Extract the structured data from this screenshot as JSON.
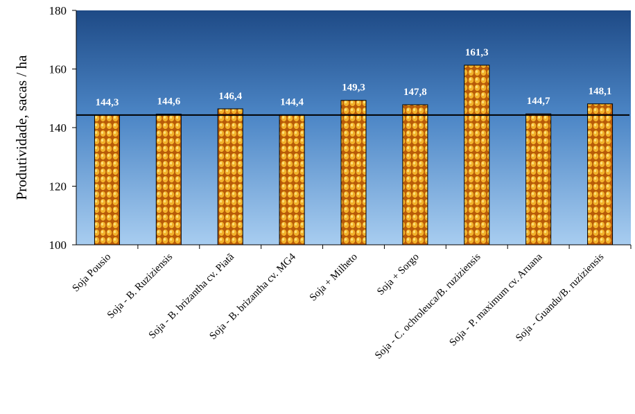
{
  "chart_data": {
    "type": "bar",
    "y_label": "Produtividade, sacas / ha",
    "categories": [
      "Soja Pousio",
      "Soja - B. Ruziziensis",
      "Soja - B. brizantha cv. Piatã",
      "Soja - B. brizantha cv. MG4",
      "Soja + Milheto",
      "Soja + Sorgo",
      "Soja - C. ochroleuca/B. ruziziensis",
      "Soja - P. maximum cv. Aruana",
      "Soja - Guandu/B. ruziziensis"
    ],
    "values": [
      144.3,
      144.6,
      146.4,
      144.4,
      149.3,
      147.8,
      161.3,
      144.7,
      148.1
    ],
    "value_labels": [
      "144,3",
      "144,6",
      "146,4",
      "144,4",
      "149,3",
      "147,8",
      "161,3",
      "144,7",
      "148,1"
    ],
    "reference_line": 144.3,
    "ylim": [
      100,
      180
    ],
    "yticks": [
      100,
      120,
      140,
      160,
      180
    ],
    "color": "#e8a020"
  }
}
